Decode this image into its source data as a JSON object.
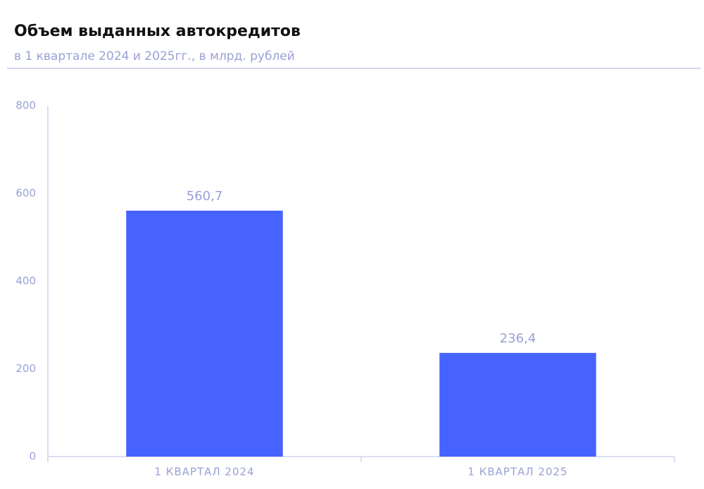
{
  "chart_data": {
    "type": "bar",
    "title": "Объем выданных автокредитов",
    "subtitle": "в 1 квартале 2024 и 2025гг., в млрд. рублей",
    "categories": [
      "1 КВАРТАЛ 2024",
      "1 КВАРТАЛ 2025"
    ],
    "values": [
      560.7,
      236.4
    ],
    "value_labels": [
      "560,7",
      "236,4"
    ],
    "color": "#4763ff",
    "ylim": [
      0,
      800
    ],
    "yticks": [
      0,
      200,
      400,
      600,
      800
    ],
    "grid": false
  }
}
